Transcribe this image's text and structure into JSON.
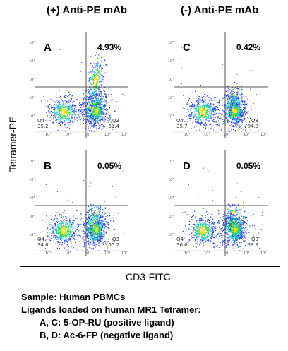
{
  "column_titles": [
    "(+) Anti-PE mAb",
    "(-) Anti-PE mAb"
  ],
  "axes": {
    "xlabel": "CD3-FITC",
    "ylabel": "Tetramer-PE"
  },
  "tick_labels": {
    "y": [
      "10⁵",
      "10⁴",
      "10³",
      "10²",
      "10¹"
    ],
    "x": [
      "10¹",
      "10²",
      "10³",
      "10⁴",
      "10⁵"
    ]
  },
  "chart_data": [
    {
      "type": "scatter",
      "panel": "A",
      "quadrant_q2_percent": "4.93%",
      "q4_label": "Q4",
      "q4_value": "35.2",
      "q3_label": "Q3",
      "q3_value": "61.4"
    },
    {
      "type": "scatter",
      "panel": "C",
      "quadrant_q2_percent": "0.42%",
      "q4_label": "Q4",
      "q4_value": "35.7",
      "q3_label": "Q3",
      "q3_value": "64.0"
    },
    {
      "type": "scatter",
      "panel": "B",
      "quadrant_q2_percent": "0.05%",
      "q4_label": "Q4",
      "q4_value": "34.6",
      "q3_label": "Q3",
      "q3_value": "65.2"
    },
    {
      "type": "scatter",
      "panel": "D",
      "quadrant_q2_percent": "0.05%",
      "q4_label": "Q4",
      "q4_value": "36.0",
      "q3_label": "Q3",
      "q3_value": "63.9"
    }
  ],
  "caption": {
    "line1": "Sample: Human PBMCs",
    "line2": "Ligands loaded on human MR1 Tetramer:",
    "line3": "A, C: 5-OP-RU (positive ligand)",
    "line4": "B, D: Ac-6-FP (negative ligand)"
  },
  "colors": {
    "density_low": "#1f3fd8",
    "density_mid": "#22c0d8",
    "density_high": "#35d635",
    "density_peak": "#e8e020",
    "quadrant_line": "#555555"
  }
}
